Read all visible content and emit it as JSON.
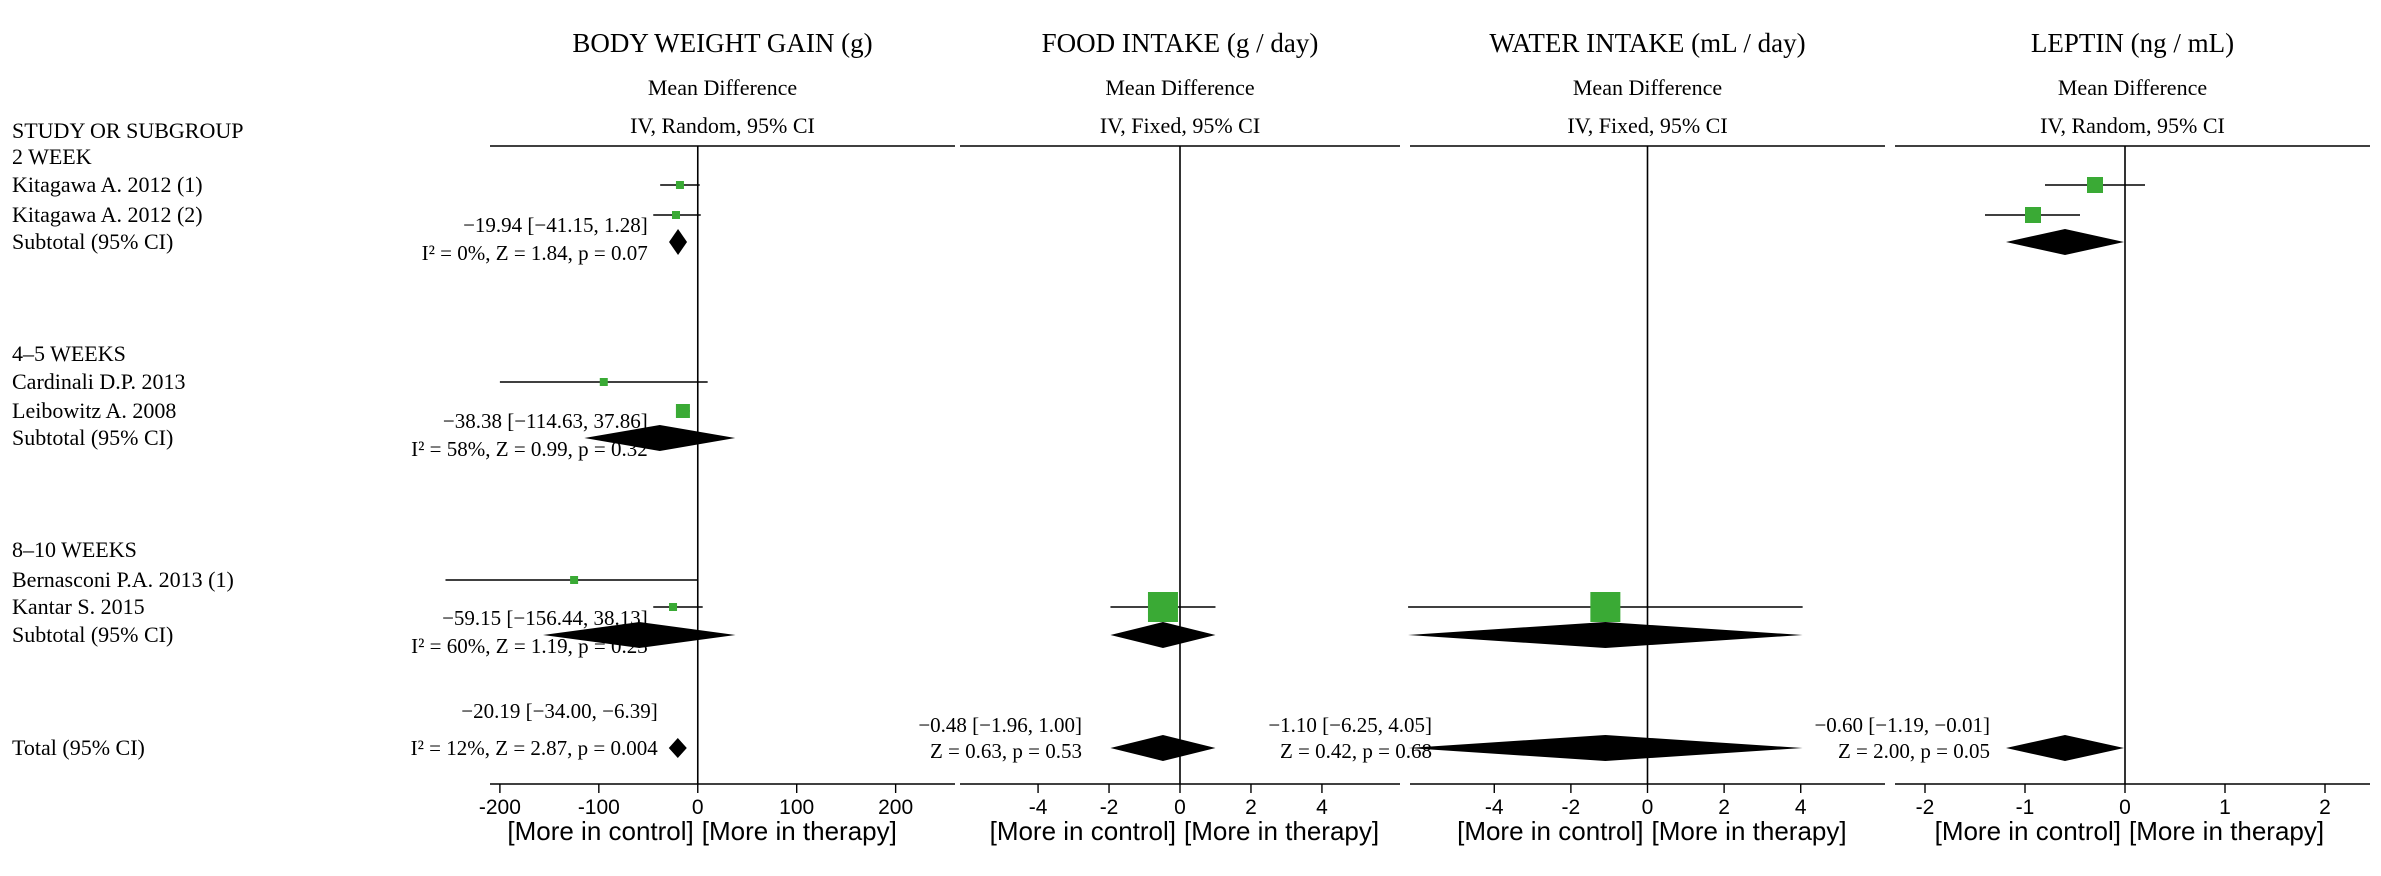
{
  "chart_data": {
    "type": "forest",
    "row_header": "STUDY OR SUBGROUP",
    "rows": [
      {
        "key": "g1",
        "label": "2 WEEK",
        "kind": "group"
      },
      {
        "key": "kit1",
        "label": "Kitagawa A. 2012 (1)",
        "kind": "study"
      },
      {
        "key": "kit2",
        "label": "Kitagawa A. 2012 (2)",
        "kind": "study"
      },
      {
        "key": "sub1",
        "label": "Subtotal (95% CI)",
        "kind": "subtotal"
      },
      {
        "key": "g2",
        "label": "4–5 WEEKS",
        "kind": "group"
      },
      {
        "key": "car",
        "label": "Cardinali D.P. 2013",
        "kind": "study"
      },
      {
        "key": "lei",
        "label": "Leibowitz A. 2008",
        "kind": "study"
      },
      {
        "key": "sub2",
        "label": "Subtotal (95% CI)",
        "kind": "subtotal"
      },
      {
        "key": "g3",
        "label": "8–10 WEEKS",
        "kind": "group"
      },
      {
        "key": "ber",
        "label": "Bernasconi P.A. 2013 (1)",
        "kind": "study"
      },
      {
        "key": "kan",
        "label": "Kantar S. 2015",
        "kind": "study"
      },
      {
        "key": "sub3",
        "label": "Subtotal (95% CI)",
        "kind": "subtotal"
      },
      {
        "key": "tot",
        "label": "Total (95% CI)",
        "kind": "total"
      }
    ],
    "panels": [
      {
        "title": "BODY WEIGHT GAIN (g)",
        "measure": "Mean Difference",
        "method": "IV, Random, 95% CI",
        "xlim": [
          -210,
          260
        ],
        "ticks": [
          -200,
          -100,
          0,
          100,
          200
        ],
        "direction_left": "[More in control]",
        "direction_right": "[More in therapy]",
        "studies": [
          {
            "row": "kit1",
            "est": -18,
            "lo": -38,
            "hi": 2
          },
          {
            "row": "kit2",
            "est": -22,
            "lo": -45,
            "hi": 3
          },
          {
            "row": "car",
            "est": -95,
            "lo": -200,
            "hi": 10
          },
          {
            "row": "lei",
            "est": -15,
            "lo": -22,
            "hi": -8
          },
          {
            "row": "ber",
            "est": -125,
            "lo": -255,
            "hi": 0
          },
          {
            "row": "kan",
            "est": -25,
            "lo": -45,
            "hi": 5
          }
        ],
        "pooled": [
          {
            "row": "sub1",
            "est": -19.94,
            "lo": -41.15,
            "hi": 1.28,
            "ci_text": "−19.94 [−41.15, 1.28]",
            "test_text": "I² = 0%, Z = 1.84, p = 0.07"
          },
          {
            "row": "sub2",
            "est": -38.38,
            "lo": -114.63,
            "hi": 37.86,
            "ci_text": "−38.38 [−114.63, 37.86]",
            "test_text": "I² = 58%, Z = 0.99, p = 0.32"
          },
          {
            "row": "sub3",
            "est": -59.15,
            "lo": -156.44,
            "hi": 38.13,
            "ci_text": "−59.15 [−156.44, 38.13]",
            "test_text": "I² = 60%, Z = 1.19, p = 0.23"
          },
          {
            "row": "tot",
            "est": -20.19,
            "lo": -34.0,
            "hi": -6.39,
            "ci_text": "−20.19 [−34.00, −6.39]",
            "test_text": "I² = 12%,  Z = 2.87, p = 0.004"
          }
        ]
      },
      {
        "title": "FOOD INTAKE (g / day)",
        "measure": "Mean Difference",
        "method": "IV, Fixed, 95% CI",
        "xlim": [
          -6.2,
          6.2
        ],
        "ticks": [
          -4,
          -2,
          0,
          2,
          4
        ],
        "direction_left": "[More in control]",
        "direction_right": "[More in therapy]",
        "studies": [
          {
            "row": "kan",
            "est": -0.48,
            "lo": -1.96,
            "hi": 1.0
          }
        ],
        "pooled": [
          {
            "row": "sub3",
            "est": -0.48,
            "lo": -1.96,
            "hi": 1.0
          },
          {
            "row": "tot",
            "est": -0.48,
            "lo": -1.96,
            "hi": 1.0,
            "ci_text": "−0.48 [−1.96, 1.00]",
            "test_text": "Z = 0.63, p = 0.53"
          }
        ]
      },
      {
        "title": "WATER INTAKE (mL / day)",
        "measure": "Mean Difference",
        "method": "IV, Fixed, 95% CI",
        "xlim": [
          -6.2,
          6.2
        ],
        "ticks": [
          -4,
          -2,
          0,
          2,
          4
        ],
        "direction_left": "[More in control]",
        "direction_right": "[More in therapy]",
        "studies": [
          {
            "row": "kan",
            "est": -1.1,
            "lo": -6.25,
            "hi": 4.05
          }
        ],
        "pooled": [
          {
            "row": "sub3",
            "est": -1.1,
            "lo": -6.25,
            "hi": 4.05
          },
          {
            "row": "tot",
            "est": -1.1,
            "lo": -6.25,
            "hi": 4.05,
            "ci_text": "−1.10 [−6.25, 4.05]",
            "test_text": "Z = 0.42, p = 0.68"
          }
        ]
      },
      {
        "title": "LEPTIN (ng / mL)",
        "measure": "Mean Difference",
        "method": "IV, Random, 95% CI",
        "xlim": [
          -2.3,
          2.45
        ],
        "ticks": [
          -2,
          -1,
          0,
          1,
          2
        ],
        "direction_left": "[More in control]",
        "direction_right": "[More in therapy]",
        "studies": [
          {
            "row": "kit1",
            "est": -0.3,
            "lo": -0.8,
            "hi": 0.2
          },
          {
            "row": "kit2",
            "est": -0.92,
            "lo": -1.4,
            "hi": -0.45
          }
        ],
        "pooled": [
          {
            "row": "sub1",
            "est": -0.6,
            "lo": -1.19,
            "hi": -0.01
          },
          {
            "row": "tot",
            "est": -0.6,
            "lo": -1.19,
            "hi": -0.01,
            "ci_text": "−0.60 [−1.19, −0.01]",
            "test_text": "Z = 2.00, p = 0.05"
          }
        ]
      }
    ]
  },
  "colors": {
    "square": "#3aaa35",
    "diamond": "#000000",
    "line": "#000000"
  }
}
